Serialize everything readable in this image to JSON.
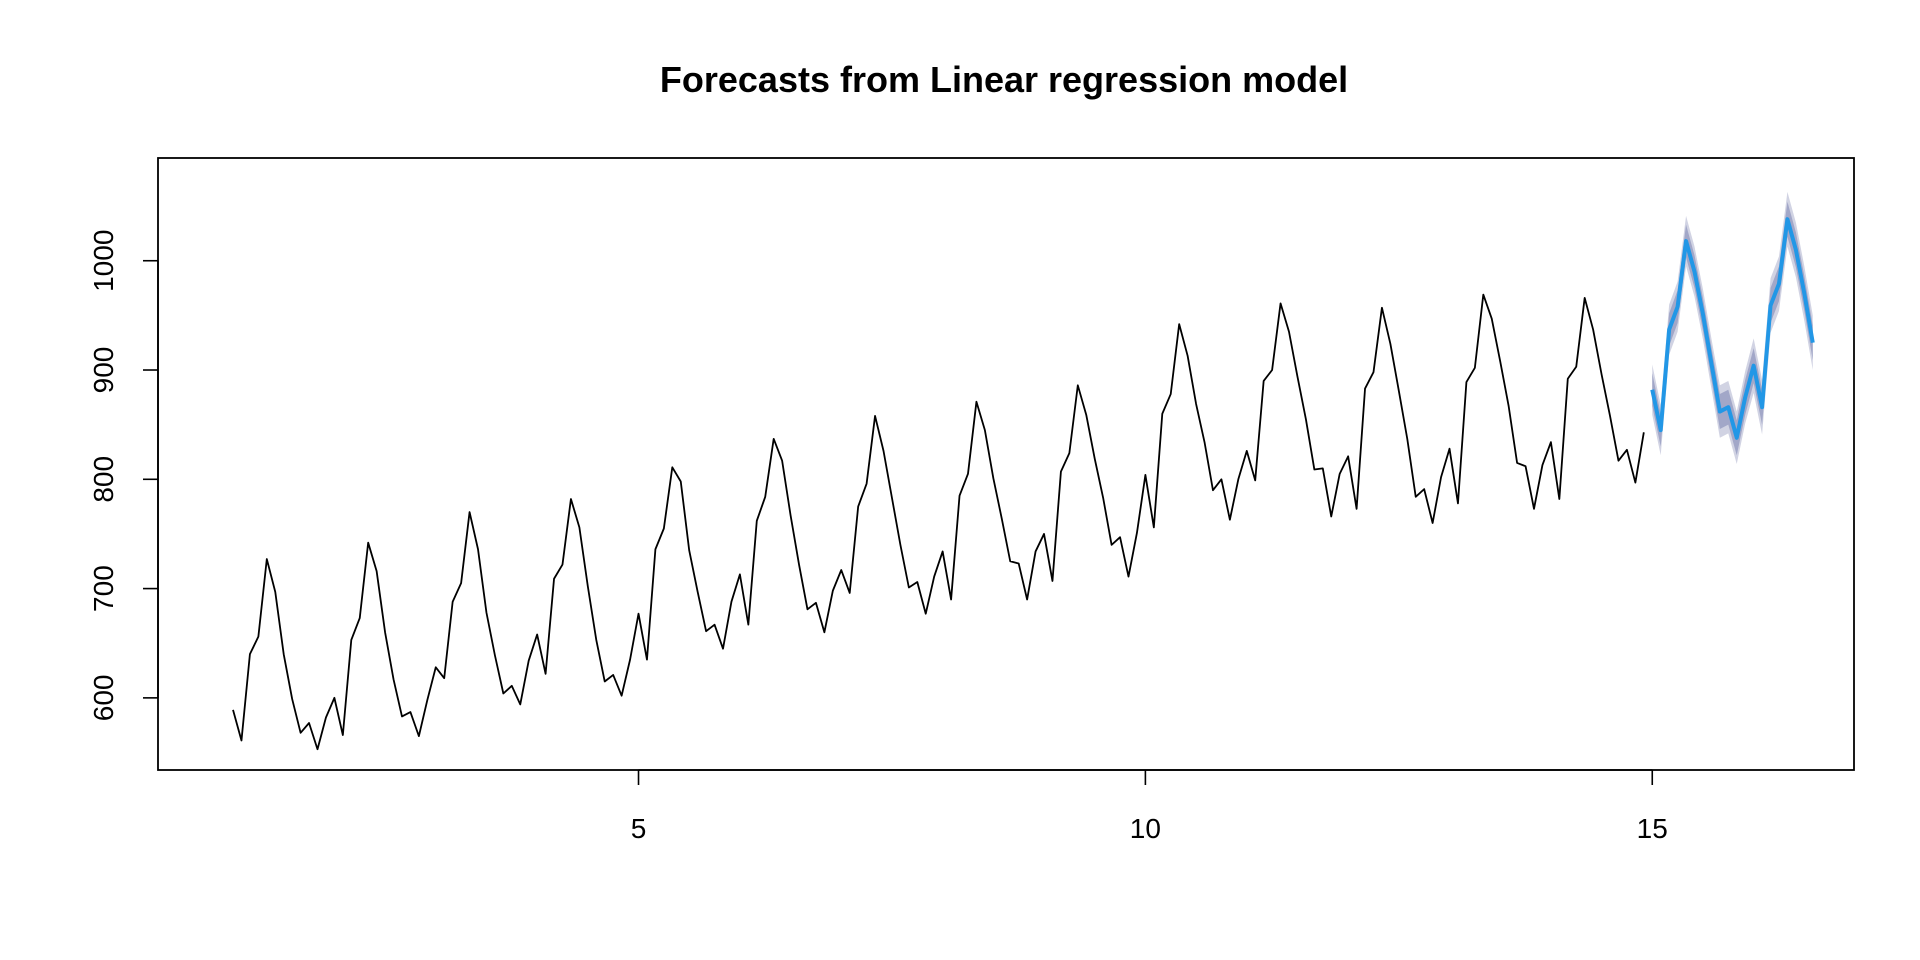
{
  "chart_data": {
    "type": "line",
    "title": "Forecasts from Linear regression model",
    "xlabel": "",
    "ylabel": "",
    "xlim": [
      0.26,
      16.99
    ],
    "ylim": [
      534,
      1094
    ],
    "x_ticks": [
      5,
      10,
      15
    ],
    "y_ticks": [
      600,
      700,
      800,
      900,
      1000
    ],
    "grid": false,
    "legend": "none",
    "colors": {
      "history": "#000000",
      "forecast": "#2297E6",
      "interval_95": "#D1D3E3",
      "interval_80": "#A2A7C8"
    },
    "series": [
      {
        "x_start": 1,
        "x_step": 0.08333333,
        "values": [
          589,
          561,
          640,
          656,
          727,
          697,
          640,
          599,
          568,
          577,
          553,
          582,
          600,
          566,
          653,
          673,
          742,
          716,
          660,
          617,
          583,
          587,
          565,
          598,
          628,
          618,
          688,
          705,
          770,
          736,
          678,
          639,
          604,
          611,
          594,
          634,
          658,
          622,
          709,
          722,
          782,
          756,
          702,
          653,
          615,
          621,
          602,
          635,
          677,
          635,
          736,
          755,
          811,
          798,
          735,
          697,
          661,
          667,
          645,
          688,
          713,
          667,
          762,
          784,
          837,
          817,
          767,
          722,
          681,
          687,
          660,
          698,
          717,
          696,
          775,
          796,
          858,
          826,
          783,
          740,
          701,
          706,
          677,
          711,
          734,
          690,
          785,
          805,
          871,
          845,
          801,
          764,
          725,
          723,
          690,
          734,
          750,
          707,
          807,
          824,
          886,
          859,
          819,
          783,
          740,
          747,
          711,
          751,
          804,
          756,
          860,
          878,
          942,
          913,
          869,
          834,
          790,
          800,
          763,
          800,
          826,
          799,
          890,
          900,
          961,
          935,
          894,
          855,
          809,
          810,
          766,
          805,
          821,
          773,
          883,
          898,
          957,
          924,
          881,
          837,
          784,
          791,
          760,
          802,
          828,
          778,
          889,
          902,
          969,
          947,
          908,
          867,
          815,
          812,
          773,
          813,
          834,
          782,
          892,
          903,
          966,
          937,
          896,
          858,
          817,
          827,
          797,
          843
        ]
      },
      {
        "x_start": 15,
        "x_step": 0.08333333,
        "values": [
          882,
          845,
          937,
          958,
          1018,
          990,
          951,
          906,
          862,
          866,
          838,
          875,
          904,
          866,
          959,
          979,
          1038,
          1010,
          970,
          925
        ],
        "lower_80": [
          867,
          830,
          922,
          943,
          1003,
          975,
          936,
          891,
          846,
          850,
          822,
          859,
          888,
          850,
          943,
          963,
          1022,
          994,
          954,
          909
        ],
        "upper_80": [
          897,
          860,
          952,
          973,
          1033,
          1005,
          966,
          921,
          878,
          882,
          854,
          891,
          920,
          882,
          975,
          995,
          1054,
          1026,
          986,
          941
        ],
        "lower_95": [
          859,
          822,
          914,
          935,
          995,
          967,
          928,
          883,
          838,
          842,
          814,
          851,
          879,
          841,
          934,
          954,
          1013,
          985,
          945,
          900
        ],
        "upper_95": [
          905,
          868,
          960,
          981,
          1041,
          1013,
          974,
          929,
          886,
          890,
          862,
          899,
          929,
          891,
          984,
          1004,
          1063,
          1035,
          995,
          950
        ]
      }
    ]
  }
}
